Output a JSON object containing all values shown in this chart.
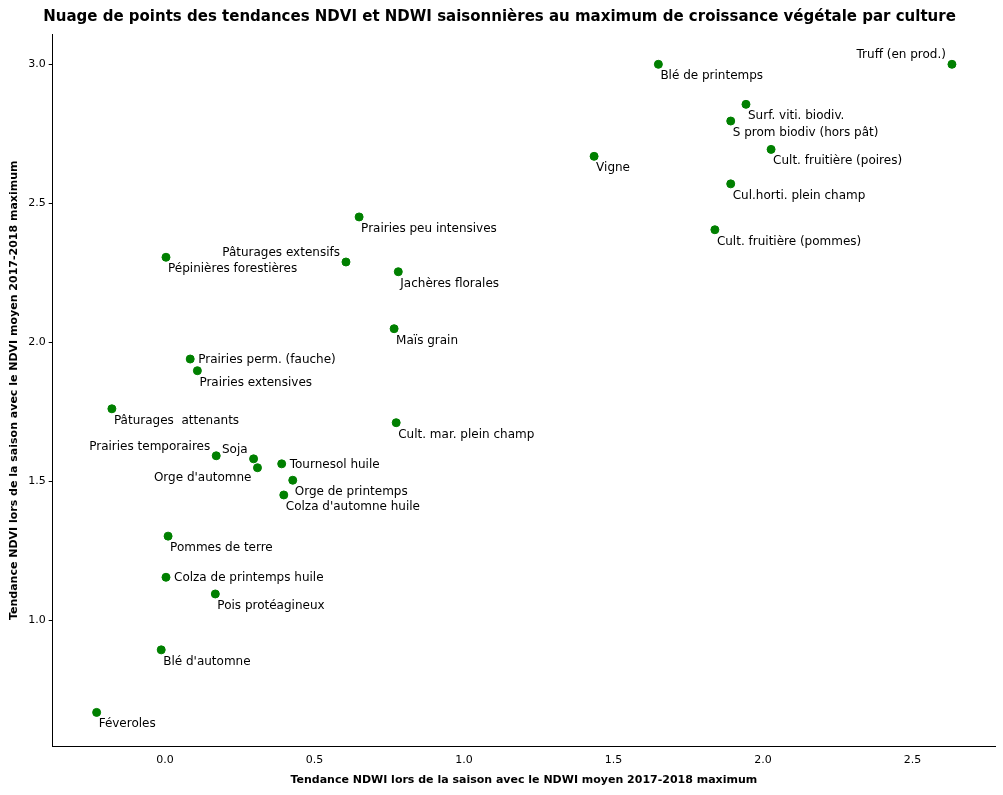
{
  "chart_data": {
    "type": "scatter",
    "title": "Nuage de points des tendances NDVI et NDWI saisonnières au maximum de croissance végétale par culture",
    "xlabel": "Tendance NDWI lors de la saison avec le NDWI moyen 2017-2018 maximum",
    "ylabel": "Tendance NDVI lors de la saison avec le NDVI moyen 2017-2018 maximum",
    "xlim": [
      -0.376,
      2.776
    ],
    "ylim": [
      0.546,
      3.109
    ],
    "xticks": [
      {
        "value": 0,
        "label": "0.0"
      },
      {
        "value": 0.5,
        "label": "0.5"
      },
      {
        "value": 1,
        "label": "1.0"
      },
      {
        "value": 1.5,
        "label": "1.5"
      },
      {
        "value": 2,
        "label": "2.0"
      },
      {
        "value": 2.5,
        "label": "2.5"
      }
    ],
    "yticks": [
      {
        "value": 1,
        "label": "1.0"
      },
      {
        "value": 1.5,
        "label": "1.5"
      },
      {
        "value": 2,
        "label": "2.0"
      },
      {
        "value": 2.5,
        "label": "2.5"
      },
      {
        "value": 3,
        "label": "3.0"
      }
    ],
    "grid": false,
    "legend": false,
    "marker": "circle",
    "series": [
      {
        "color": "#008000",
        "x": [
          1.65,
          2.632,
          1.943,
          1.892,
          2.027,
          1.435,
          1.892,
          1.839,
          0.649,
          0.605,
          0.78,
          0.003,
          0.766,
          0.084,
          0.108,
          -0.178,
          0.773,
          0.171,
          0.296,
          0.39,
          0.309,
          0.427,
          0.397,
          0.01,
          0.003,
          0.168,
          -0.013,
          -0.229
        ],
        "values": [
          3.0,
          3.0,
          2.856,
          2.796,
          2.694,
          2.669,
          2.57,
          2.405,
          2.451,
          2.289,
          2.254,
          2.306,
          2.049,
          1.94,
          1.898,
          1.761,
          1.711,
          1.592,
          1.581,
          1.563,
          1.549,
          1.504,
          1.451,
          1.303,
          1.155,
          1.095,
          0.894,
          0.669
        ]
      }
    ],
    "annotations": [
      {
        "text": "Blé de printemps",
        "x": 1.65,
        "y": 3.0
      },
      {
        "text": "Truff (en prod.)",
        "x": 2.632,
        "y": 3.0
      },
      {
        "text": "Surf. viti. biodiv.",
        "x": 1.943,
        "y": 2.856
      },
      {
        "text": "S prom biodiv (hors pât)",
        "x": 1.892,
        "y": 2.796
      },
      {
        "text": "Cult. fruitière (poires)",
        "x": 2.027,
        "y": 2.694
      },
      {
        "text": "Vigne",
        "x": 1.435,
        "y": 2.669
      },
      {
        "text": "Cul.horti. plein champ",
        "x": 1.892,
        "y": 2.57
      },
      {
        "text": "Cult. fruitière (pommes)",
        "x": 1.839,
        "y": 2.405
      },
      {
        "text": "Prairies peu intensives",
        "x": 0.649,
        "y": 2.451
      },
      {
        "text": "Pâturages extensifs",
        "x": 0.605,
        "y": 2.289
      },
      {
        "text": "Jachères florales",
        "x": 0.78,
        "y": 2.254
      },
      {
        "text": "Pépinières forestières",
        "x": 0.003,
        "y": 2.306
      },
      {
        "text": "Maïs grain",
        "x": 0.766,
        "y": 2.049
      },
      {
        "text": "Prairies perm. (fauche)",
        "x": 0.084,
        "y": 1.94
      },
      {
        "text": "Prairies extensives",
        "x": 0.108,
        "y": 1.898
      },
      {
        "text": "Pâturages  attenants",
        "x": -0.178,
        "y": 1.761
      },
      {
        "text": "Cult. mar. plein champ",
        "x": 0.773,
        "y": 1.711
      },
      {
        "text": "Prairies temporaires",
        "x": 0.171,
        "y": 1.592
      },
      {
        "text": "Soja",
        "x": 0.296,
        "y": 1.581
      },
      {
        "text": "Tournesol huile",
        "x": 0.39,
        "y": 1.563
      },
      {
        "text": "Orge d'automne",
        "x": 0.309,
        "y": 1.549
      },
      {
        "text": "Orge de printemps",
        "x": 0.427,
        "y": 1.504
      },
      {
        "text": "Colza d'automne huile",
        "x": 0.397,
        "y": 1.451
      },
      {
        "text": "Pommes de terre",
        "x": 0.01,
        "y": 1.303
      },
      {
        "text": "Colza de printemps huile",
        "x": 0.003,
        "y": 1.155
      },
      {
        "text": "Pois protéagineux",
        "x": 0.168,
        "y": 1.095
      },
      {
        "text": "Blé d'automne",
        "x": -0.013,
        "y": 0.894
      },
      {
        "text": "Féveroles",
        "x": -0.229,
        "y": 0.669
      }
    ]
  }
}
